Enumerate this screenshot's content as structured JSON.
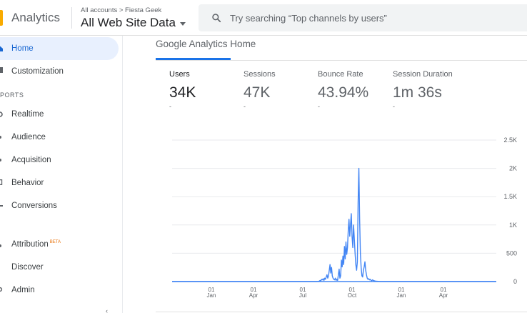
{
  "header": {
    "app_title": "Analytics",
    "breadcrumb": "All accounts > Fiesta Geek",
    "property": "All Web Site Data",
    "search_placeholder": "Try searching “Top channels by users”",
    "logo_color": "#f9ab00"
  },
  "sidebar": {
    "items": [
      {
        "label": "Home",
        "icon": "home-icon",
        "active": true
      },
      {
        "label": "Customization",
        "icon": "customization-icon"
      },
      {
        "label": "Realtime",
        "icon": "realtime-icon"
      },
      {
        "label": "Audience",
        "icon": "audience-icon"
      },
      {
        "label": "Acquisition",
        "icon": "acquisition-icon"
      },
      {
        "label": "Behavior",
        "icon": "behavior-icon"
      },
      {
        "label": "Conversions",
        "icon": "conversions-icon"
      },
      {
        "label": "Attribution",
        "icon": "attribution-icon",
        "badge": "BETA"
      },
      {
        "label": "Discover",
        "icon": "discover-icon"
      },
      {
        "label": "Admin",
        "icon": "admin-icon"
      }
    ],
    "section_label": "PORTS"
  },
  "main": {
    "page_title": "Google Analytics Home",
    "metrics": [
      {
        "label": "Users",
        "value": "34K",
        "delta": "-",
        "active": true
      },
      {
        "label": "Sessions",
        "value": "47K",
        "delta": "-"
      },
      {
        "label": "Bounce Rate",
        "value": "43.94%",
        "delta": "-"
      },
      {
        "label": "Session Duration",
        "value": "1m 36s",
        "delta": "-"
      }
    ]
  },
  "chart_data": {
    "type": "line",
    "x_ticks": [
      {
        "day": "01",
        "month": "Jan"
      },
      {
        "day": "01",
        "month": "Apr"
      },
      {
        "day": "01",
        "month": "Jul"
      },
      {
        "day": "01",
        "month": "Oct"
      },
      {
        "day": "01",
        "month": "Jan"
      },
      {
        "day": "01",
        "month": "Apr"
      }
    ],
    "y_ticks": [
      "0",
      "500",
      "1K",
      "1.5K",
      "2K",
      "2.5K"
    ],
    "ylim": [
      0,
      2500
    ],
    "series": [
      {
        "color": "#4285f4",
        "values": [
          0,
          0,
          0,
          0,
          0,
          0,
          0,
          0,
          0,
          0,
          0,
          0,
          0,
          0,
          0,
          0,
          0,
          0,
          0,
          0,
          0,
          0,
          0,
          0,
          0,
          0,
          0,
          0,
          0,
          0,
          0,
          0,
          0,
          0,
          0,
          0,
          0,
          0,
          0,
          0,
          0,
          0,
          0,
          0,
          0,
          0,
          0,
          0,
          0,
          0,
          0,
          0,
          0,
          0,
          0,
          0,
          0,
          0,
          0,
          0,
          0,
          0,
          0,
          0,
          0,
          0,
          0,
          0,
          0,
          0,
          0,
          0,
          0,
          0,
          0,
          0,
          0,
          0,
          0,
          0,
          0,
          0,
          0,
          0,
          0,
          0,
          0,
          0,
          0,
          0,
          0,
          0,
          0,
          0,
          0,
          0,
          0,
          0,
          0,
          0,
          0,
          0,
          0,
          0,
          0,
          0,
          0,
          0,
          0,
          0,
          0,
          0,
          0,
          0,
          0,
          0,
          0,
          0,
          0,
          0,
          0,
          0,
          0,
          0,
          0,
          0,
          0,
          0,
          0,
          0,
          0,
          0,
          0,
          0,
          0,
          0,
          0,
          0,
          0,
          0,
          0,
          0,
          0,
          0,
          0,
          0,
          0,
          0,
          0,
          0,
          0,
          0,
          0,
          0,
          0,
          0,
          0,
          0,
          0,
          0,
          0,
          0,
          0,
          0,
          0,
          0,
          0,
          0,
          0,
          0,
          0,
          0,
          0,
          0,
          0,
          0,
          0,
          0,
          0,
          0,
          0,
          0,
          0,
          0,
          0,
          0,
          0,
          0,
          0,
          0,
          0,
          0,
          5,
          0,
          10,
          20,
          15,
          40,
          30,
          50,
          20,
          60,
          40,
          80,
          120,
          60,
          100,
          200,
          300,
          150,
          250,
          100,
          60,
          40,
          30,
          60,
          20,
          40,
          20,
          120,
          220,
          60,
          100,
          380,
          260,
          450,
          300,
          620,
          400,
          700,
          480,
          600,
          900,
          1100,
          800,
          1000,
          1200,
          800,
          600,
          1000,
          750,
          500,
          300,
          200,
          350,
          1400,
          2000,
          1100,
          500,
          250,
          100,
          80,
          200,
          260,
          350,
          200,
          120,
          60,
          40,
          50,
          30,
          40,
          20,
          15,
          30,
          20,
          15,
          10,
          8,
          5,
          6,
          4,
          3,
          2,
          0,
          0,
          0,
          0,
          0,
          0,
          0,
          0,
          0,
          0,
          0,
          0,
          0,
          0,
          0,
          0,
          0,
          0,
          0,
          0,
          0,
          0,
          0,
          0,
          0,
          0,
          0,
          0,
          0,
          0,
          0,
          0,
          0,
          0,
          0,
          0,
          0,
          0,
          0,
          0,
          0,
          0,
          0,
          0,
          0,
          0,
          0,
          0,
          0,
          0,
          0,
          0,
          0,
          0,
          0,
          0,
          0,
          0,
          0,
          0,
          0,
          0,
          0,
          0,
          0,
          0,
          0,
          0,
          0,
          0,
          0,
          0,
          0,
          0,
          0,
          0,
          0,
          0,
          0,
          0,
          0,
          0,
          0,
          0,
          0,
          0,
          0,
          0,
          0,
          0,
          0,
          0,
          0,
          0,
          0,
          0,
          0,
          0,
          0,
          0,
          0,
          0,
          0,
          0,
          0,
          0,
          0,
          0,
          0,
          0,
          0,
          0,
          0,
          0,
          0,
          0,
          0,
          0,
          0,
          0,
          0,
          0,
          0,
          0,
          0,
          0,
          0,
          0,
          0,
          0,
          0,
          0,
          0,
          0,
          0,
          0,
          0,
          0,
          0,
          0,
          0,
          0,
          0,
          0,
          0,
          0,
          0,
          0,
          0,
          0,
          0,
          0,
          0,
          0
        ]
      }
    ]
  }
}
